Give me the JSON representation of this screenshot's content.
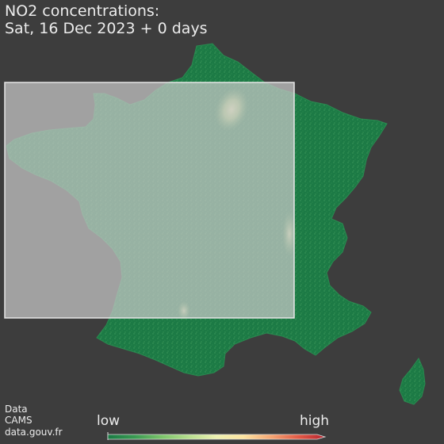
{
  "title": {
    "line1": "NO2 concentrations:",
    "line2": "Sat, 16 Dec 2023 + 0 days"
  },
  "credits": {
    "line1": "Data",
    "line2": "CAMS",
    "line3": "data.gouv.fr"
  },
  "colorbar": {
    "low_label": "low",
    "high_label": "high",
    "colors": [
      "#1a7a44",
      "#3a9a52",
      "#7cc46a",
      "#b8df8e",
      "#eef1b0",
      "#fde4a0",
      "#f5a673",
      "#e35b46",
      "#b8232f"
    ]
  },
  "map": {
    "region": "France",
    "background_color": "#3d3d3d",
    "land_color": "#1e7e49",
    "highlight_color": "#d9e8a8",
    "overlay_color": "#c8c8c8"
  }
}
